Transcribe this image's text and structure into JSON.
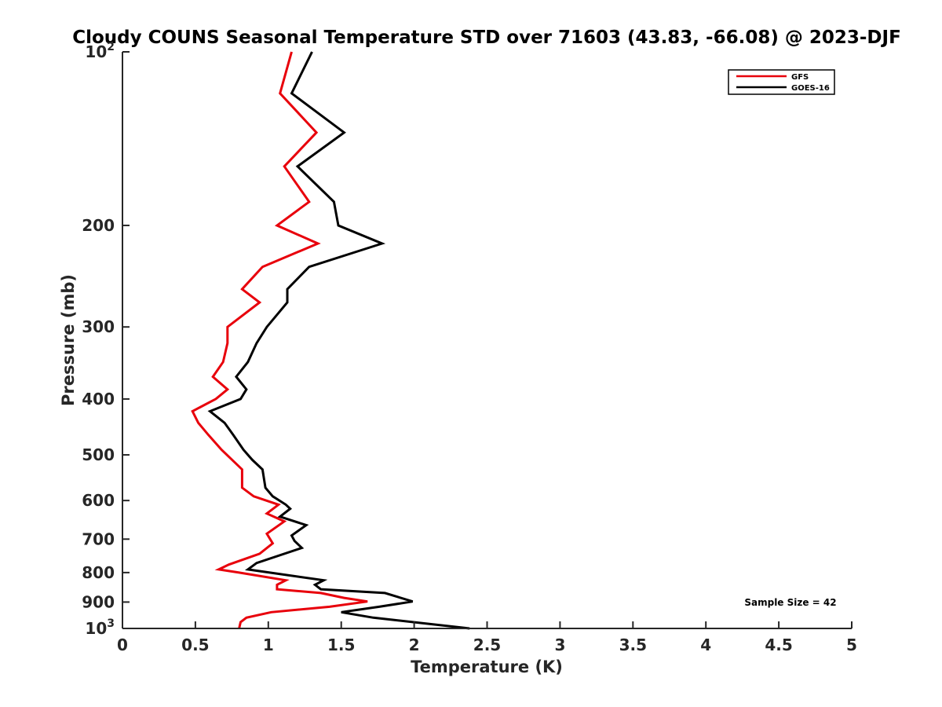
{
  "chart_data": {
    "type": "line",
    "title": "Cloudy COUNS Seasonal Temperature STD over 71603 (43.83, -66.08) @ 2023-DJF",
    "xlabel": "Temperature (K)",
    "ylabel": "Pressure (mb)",
    "xlim": [
      0,
      5
    ],
    "ylim": [
      100,
      1000
    ],
    "yscale": "log",
    "yreverse": true,
    "x_ticks": [
      0,
      0.5,
      1,
      1.5,
      2,
      2.5,
      3,
      3.5,
      4,
      4.5,
      5
    ],
    "x_tick_labels": [
      "0",
      "0.5",
      "1",
      "1.5",
      "2",
      "2.5",
      "3",
      "3.5",
      "4",
      "4.5",
      "5"
    ],
    "y_ticks": [
      100,
      200,
      300,
      400,
      500,
      600,
      700,
      800,
      900,
      1000
    ],
    "y_tick_labels": [
      {
        "base": "10",
        "exp": "2"
      },
      {
        "base": "200",
        "exp": ""
      },
      {
        "base": "300",
        "exp": ""
      },
      {
        "base": "400",
        "exp": ""
      },
      {
        "base": "500",
        "exp": ""
      },
      {
        "base": "600",
        "exp": ""
      },
      {
        "base": "700",
        "exp": ""
      },
      {
        "base": "800",
        "exp": ""
      },
      {
        "base": "900",
        "exp": ""
      },
      {
        "base": "10",
        "exp": "3"
      }
    ],
    "grid": false,
    "legend_position": "top-right",
    "series": [
      {
        "name": "GFS",
        "color": "#e8000b",
        "points": [
          [
            1.16,
            100
          ],
          [
            1.08,
            118
          ],
          [
            1.33,
            138
          ],
          [
            1.11,
            158
          ],
          [
            1.28,
            182
          ],
          [
            1.06,
            200
          ],
          [
            1.34,
            215
          ],
          [
            0.96,
            236
          ],
          [
            0.82,
            258
          ],
          [
            0.94,
            272
          ],
          [
            0.72,
            300
          ],
          [
            0.72,
            320
          ],
          [
            0.69,
            345
          ],
          [
            0.62,
            366
          ],
          [
            0.72,
            385
          ],
          [
            0.64,
            400
          ],
          [
            0.48,
            420
          ],
          [
            0.52,
            440
          ],
          [
            0.59,
            462
          ],
          [
            0.68,
            490
          ],
          [
            0.82,
            530
          ],
          [
            0.82,
            570
          ],
          [
            0.9,
            590
          ],
          [
            1.07,
            610
          ],
          [
            0.99,
            632
          ],
          [
            1.11,
            652
          ],
          [
            0.99,
            685
          ],
          [
            1.03,
            712
          ],
          [
            0.94,
            742
          ],
          [
            0.73,
            775
          ],
          [
            0.66,
            790
          ],
          [
            0.8,
            800
          ],
          [
            1.12,
            825
          ],
          [
            1.06,
            840
          ],
          [
            1.06,
            855
          ],
          [
            1.36,
            868
          ],
          [
            1.52,
            885
          ],
          [
            1.68,
            898
          ],
          [
            1.42,
            917
          ],
          [
            1.02,
            937
          ],
          [
            0.85,
            958
          ],
          [
            0.81,
            975
          ],
          [
            0.8,
            1000
          ]
        ]
      },
      {
        "name": "GOES-16",
        "color": "#000000",
        "points": [
          [
            1.3,
            100
          ],
          [
            1.16,
            118
          ],
          [
            1.52,
            138
          ],
          [
            1.2,
            158
          ],
          [
            1.45,
            182
          ],
          [
            1.48,
            200
          ],
          [
            1.78,
            215
          ],
          [
            1.28,
            236
          ],
          [
            1.13,
            258
          ],
          [
            1.13,
            272
          ],
          [
            0.99,
            300
          ],
          [
            0.92,
            320
          ],
          [
            0.86,
            345
          ],
          [
            0.78,
            366
          ],
          [
            0.85,
            385
          ],
          [
            0.81,
            400
          ],
          [
            0.6,
            420
          ],
          [
            0.7,
            440
          ],
          [
            0.76,
            462
          ],
          [
            0.83,
            490
          ],
          [
            0.89,
            510
          ],
          [
            0.96,
            530
          ],
          [
            0.98,
            570
          ],
          [
            1.03,
            590
          ],
          [
            1.12,
            610
          ],
          [
            1.15,
            620
          ],
          [
            1.08,
            640
          ],
          [
            1.26,
            662
          ],
          [
            1.16,
            690
          ],
          [
            1.18,
            705
          ],
          [
            1.23,
            725
          ],
          [
            0.92,
            770
          ],
          [
            0.86,
            790
          ],
          [
            1.38,
            825
          ],
          [
            1.32,
            840
          ],
          [
            1.36,
            855
          ],
          [
            1.8,
            868
          ],
          [
            1.99,
            898
          ],
          [
            1.76,
            917
          ],
          [
            1.5,
            937
          ],
          [
            1.72,
            958
          ],
          [
            2.38,
            1000
          ]
        ]
      }
    ],
    "annotations": [
      {
        "text": "Sample Size = 42"
      }
    ]
  }
}
